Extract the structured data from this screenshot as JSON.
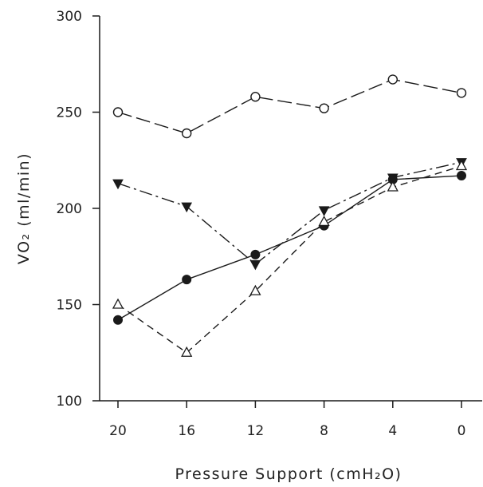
{
  "chart_data": {
    "type": "line",
    "xlabel": "Pressure Support (cmH₂O)",
    "ylabel": "VO₂ (ml/min)",
    "categories": [
      "20",
      "16",
      "12",
      "8",
      "4",
      "0"
    ],
    "ylim": [
      100,
      300
    ],
    "yticks": [
      100,
      150,
      200,
      250,
      300
    ],
    "grid": false,
    "legend": "none",
    "series": [
      {
        "marker": "open-circle",
        "line": "long-dash",
        "color": "#1a1a1a",
        "values": [
          250,
          239,
          258,
          252,
          267,
          260
        ]
      },
      {
        "marker": "filled-triangle-down",
        "line": "dash-dot",
        "color": "#1a1a1a",
        "values": [
          213,
          201,
          171,
          199,
          216,
          224
        ]
      },
      {
        "marker": "filled-circle",
        "line": "solid",
        "color": "#1a1a1a",
        "values": [
          142,
          163,
          176,
          191,
          215,
          217
        ]
      },
      {
        "marker": "open-triangle-up",
        "line": "short-dash",
        "color": "#1a1a1a",
        "values": [
          150,
          125,
          157,
          193,
          211,
          222
        ]
      }
    ]
  }
}
